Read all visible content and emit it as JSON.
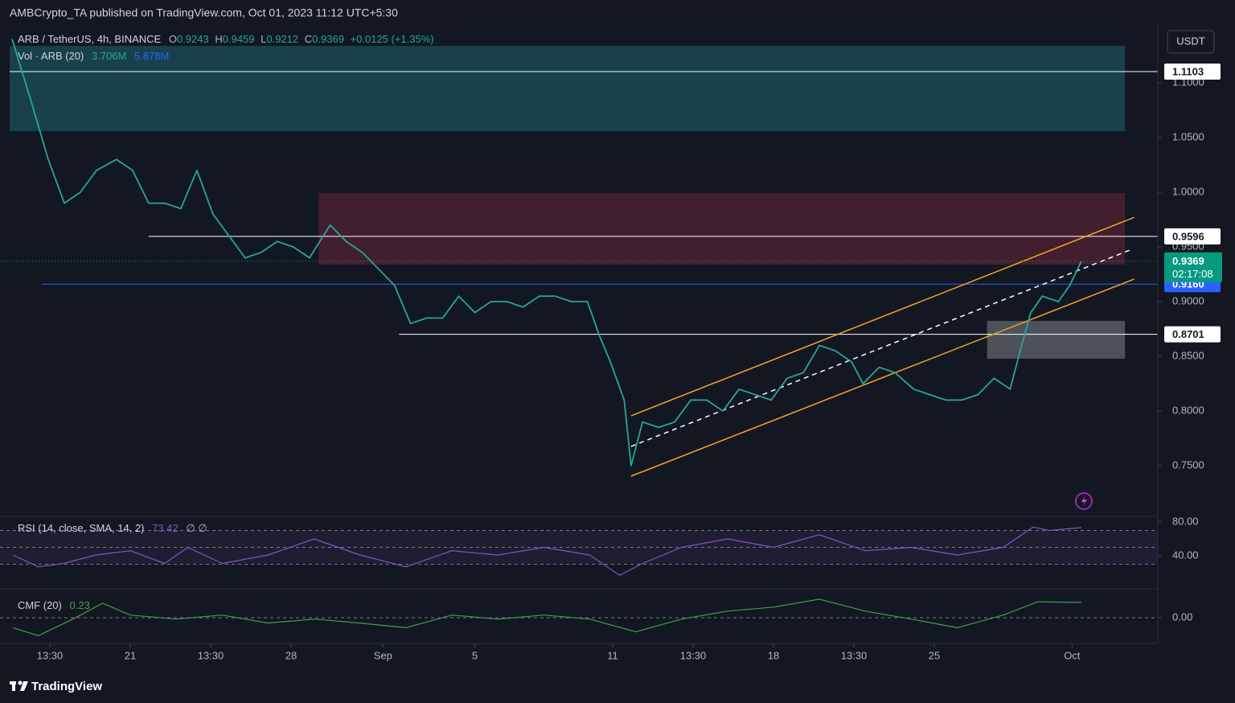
{
  "header": {
    "publisher": "AMBCrypto_TA published on TradingView.com, Oct 01, 2023 11:12 UTC+5:30",
    "ohlc": [
      {
        "key": "O",
        "val": "0.9243"
      },
      {
        "key": "H",
        "val": "0.9459"
      },
      {
        "key": "L",
        "val": "0.9212"
      },
      {
        "key": "C",
        "val": "0.9369"
      }
    ],
    "change": "+0.0125 (+1.35%)",
    "volume": {
      "name": "Vol · ARB (20)",
      "values": [
        "3.706M",
        "5.878M"
      ]
    },
    "currency": "USDT",
    "footer": "TradingView"
  },
  "chart_data": [
    {
      "type": "line",
      "x": [
        15.86,
        16.73,
        17.43,
        18.13,
        18.83,
        19.53,
        20.4,
        21.1,
        21.8,
        22.5,
        23.2,
        23.9,
        24.6,
        25.3,
        26.0,
        26.7,
        27.4,
        28.1,
        28.8,
        29.7,
        30.4,
        31.1,
        31.8,
        32.5,
        33.2,
        33.9,
        34.6,
        35.3,
        36.0,
        36.7,
        37.4,
        38.1,
        38.8,
        39.5,
        40.2,
        40.9,
        41.4,
        41.9,
        42.5,
        42.8,
        43.3,
        44.0,
        44.7,
        45.4,
        46.1,
        46.8,
        47.5,
        48.2,
        48.9,
        49.6,
        50.3,
        51.0,
        51.7,
        52.4,
        52.9,
        53.6,
        54.3,
        55.1,
        55.8,
        56.5,
        57.2,
        57.9,
        58.6,
        59.3,
        59.8,
        60.2,
        60.7,
        61.4,
        61.9,
        62.4
      ],
      "series": [
        {
          "name": "ARB / TetherUS, 4h, BINANCE",
          "color": "#26a69a",
          "values": [
            1.14,
            1.08,
            1.03,
            0.99,
            1.0,
            1.02,
            1.03,
            1.02,
            0.99,
            0.99,
            0.985,
            1.02,
            0.98,
            0.96,
            0.94,
            0.945,
            0.955,
            0.95,
            0.94,
            0.97,
            0.955,
            0.945,
            0.93,
            0.915,
            0.88,
            0.885,
            0.885,
            0.905,
            0.89,
            0.9,
            0.9,
            0.895,
            0.905,
            0.905,
            0.9,
            0.9,
            0.87,
            0.845,
            0.81,
            0.75,
            0.79,
            0.785,
            0.79,
            0.81,
            0.81,
            0.8,
            0.82,
            0.815,
            0.81,
            0.83,
            0.835,
            0.86,
            0.855,
            0.845,
            0.825,
            0.84,
            0.835,
            0.82,
            0.815,
            0.81,
            0.81,
            0.815,
            0.83,
            0.82,
            0.86,
            0.89,
            0.905,
            0.9,
            0.915,
            0.9369
          ]
        }
      ],
      "xlim": [
        15.33,
        65.73
      ],
      "ylim": [
        0.7051,
        1.1537
      ],
      "yticks": [
        {
          "value": 0.75,
          "label": "0.7500"
        },
        {
          "value": 0.8,
          "label": "0.8000"
        },
        {
          "value": 0.85,
          "label": "0.8500"
        },
        {
          "value": 0.9,
          "label": "0.9000"
        },
        {
          "value": 0.95,
          "label": "0.9500"
        },
        {
          "value": 1.0,
          "label": "1.0000"
        },
        {
          "value": 1.05,
          "label": "1.0500"
        },
        {
          "value": 1.1,
          "label": "1.1000"
        }
      ],
      "xticks": [
        {
          "value": 17.5,
          "label": "13:30"
        },
        {
          "value": 21,
          "label": "21"
        },
        {
          "value": 24.5,
          "label": "13:30"
        },
        {
          "value": 28,
          "label": "28"
        },
        {
          "value": 32,
          "label": "Sep"
        },
        {
          "value": 36,
          "label": "5"
        },
        {
          "value": 42,
          "label": "11"
        },
        {
          "value": 45.5,
          "label": "13:30"
        },
        {
          "value": 49,
          "label": "18"
        },
        {
          "value": 52.5,
          "label": "13:30"
        },
        {
          "value": 56,
          "label": "25"
        },
        {
          "value": 62,
          "label": "Oct"
        }
      ],
      "zones": [
        {
          "x": [
            15.75,
            64.3
          ],
          "y": [
            1.0559,
            1.1338
          ],
          "color": "#1b4953"
        },
        {
          "x": [
            29.2,
            64.3
          ],
          "y": [
            0.9338,
            0.9993
          ],
          "color": "#4b2130"
        },
        {
          "x": [
            58.3,
            64.3
          ],
          "y": [
            0.8478,
            0.8824
          ],
          "color": "#585c64"
        }
      ],
      "levels": [
        {
          "value": 1.1103,
          "from": 15.75,
          "color": "#ffffff"
        },
        {
          "value": 0.9596,
          "from": 21.8,
          "color": "#ffffff"
        },
        {
          "value": {
            "value": 0.916,
            "label": "0.9160"
          },
          "from": 17.15,
          "color": "#2962ff"
        },
        {
          "value": 0.8701,
          "from": 32.7,
          "color": "#ffffff"
        }
      ],
      "channel": [
        {
          "x": [
            42.8,
            64.7
          ],
          "y": [
            0.7956,
            0.977
          ],
          "color": "#f5a623",
          "dash": false
        },
        {
          "x": [
            42.8,
            64.7
          ],
          "y": [
            0.7404,
            0.9206
          ],
          "color": "#f5a623",
          "dash": false
        },
        {
          "x": [
            42.8,
            64.5
          ],
          "y": [
            0.7676,
            0.947
          ],
          "color": "#ffffff",
          "dash": true
        }
      ],
      "last": {
        "value": 0.9369,
        "countdown": "02:17:08",
        "color": "#089981"
      }
    },
    {
      "type": "line",
      "x": [
        15.9,
        17,
        18.1,
        19.5,
        21,
        22.5,
        23.5,
        25,
        27,
        29,
        31,
        33,
        35,
        37,
        39,
        41,
        42.3,
        43.3,
        45,
        47,
        49,
        51,
        53,
        55,
        57,
        59,
        60.3,
        61,
        62.4
      ],
      "series": [
        {
          "name": "RSI (14, close, SMA, 14, 2)",
          "color": "#7e57c2",
          "values": [
            41,
            27,
            31,
            41,
            46,
            31,
            50,
            31,
            41,
            60,
            41,
            27,
            46,
            41,
            50,
            41,
            17,
            31,
            50,
            60,
            50,
            65,
            46,
            50,
            41,
            50,
            74,
            70,
            73.42
          ]
        }
      ],
      "extra": "∅ ∅",
      "xlim": [
        15.33,
        65.73
      ],
      "ylim": [
        2.9,
        85.7
      ],
      "yticks": [
        {
          "value": 80,
          "label": "80.00"
        },
        {
          "value": 40,
          "label": "40.00"
        }
      ],
      "band": [
        30,
        70
      ],
      "guides": [
        30,
        50,
        70
      ]
    },
    {
      "type": "line",
      "x": [
        15.9,
        17,
        18.5,
        19.8,
        21,
        23,
        25,
        27,
        29,
        31,
        33,
        35,
        37,
        39,
        41,
        43,
        45,
        47,
        49,
        51,
        53,
        55,
        57,
        59,
        60.5,
        62.4
      ],
      "series": [
        {
          "name": "CMF (20)",
          "color": "#43a047",
          "values": [
            -0.15,
            -0.27,
            -0.02,
            0.22,
            0.04,
            -0.02,
            0.04,
            -0.08,
            -0.02,
            -0.08,
            -0.15,
            0.04,
            -0.02,
            0.04,
            -0.02,
            -0.21,
            -0.02,
            0.1,
            0.16,
            0.28,
            0.1,
            -0.02,
            -0.15,
            0.04,
            0.24,
            0.23
          ]
        }
      ],
      "xlim": [
        15.33,
        65.73
      ],
      "ylim": [
        -0.387,
        0.4
      ],
      "yticks": [
        {
          "value": 0,
          "label": "0.00"
        }
      ],
      "guides": [
        0
      ]
    }
  ]
}
